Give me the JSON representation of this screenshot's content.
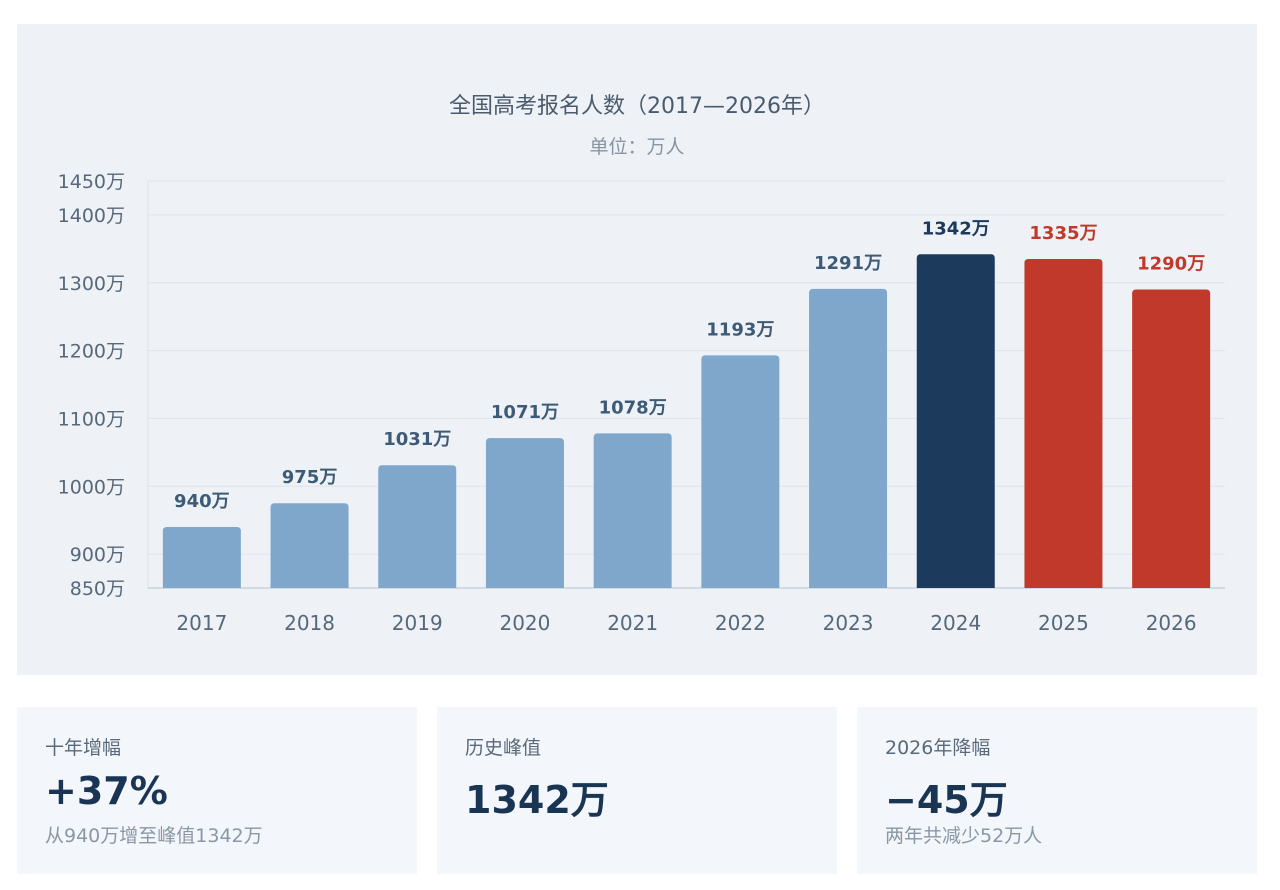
{
  "chart_data": {
    "type": "bar",
    "title": "全国高考报名人数（2017—2026年）",
    "subtitle": "单位：万人",
    "categories": [
      "2017",
      "2018",
      "2019",
      "2020",
      "2021",
      "2022",
      "2023",
      "2024",
      "2025",
      "2026"
    ],
    "values": [
      940,
      975,
      1031,
      1071,
      1078,
      1193,
      1291,
      1342,
      1335,
      1290
    ],
    "data_labels": [
      "940万",
      "975万",
      "1031万",
      "1071万",
      "1078万",
      "1193万",
      "1291万",
      "1342万",
      "1335万",
      "1290万"
    ],
    "ylim": [
      850,
      1450
    ],
    "y_ticks": [
      850,
      900,
      1000,
      1100,
      1200,
      1300,
      1400,
      1450
    ],
    "y_tick_labels": [
      "850万",
      "900万",
      "1000万",
      "1100万",
      "1200万",
      "1300万",
      "1400万",
      "1450万"
    ],
    "grid": true,
    "colors": {
      "normal": "#7fa7cb",
      "peak": "#1b3a5c",
      "decline": "#c0392b",
      "label_normal": "#3d5a76",
      "label_peak": "#1b3a5c",
      "label_decline": "#c0392b"
    },
    "highlight": {
      "2024": "peak",
      "2025": "decline",
      "2026": "decline"
    }
  },
  "cards": [
    {
      "label": "十年增幅",
      "value": "+37%",
      "note": "从940万增至峰值1342万"
    },
    {
      "label": "历史峰值",
      "value": "1342万",
      "note": ""
    },
    {
      "label": "2026年降幅",
      "value": "−45万",
      "note": "两年共减少52万人"
    }
  ]
}
